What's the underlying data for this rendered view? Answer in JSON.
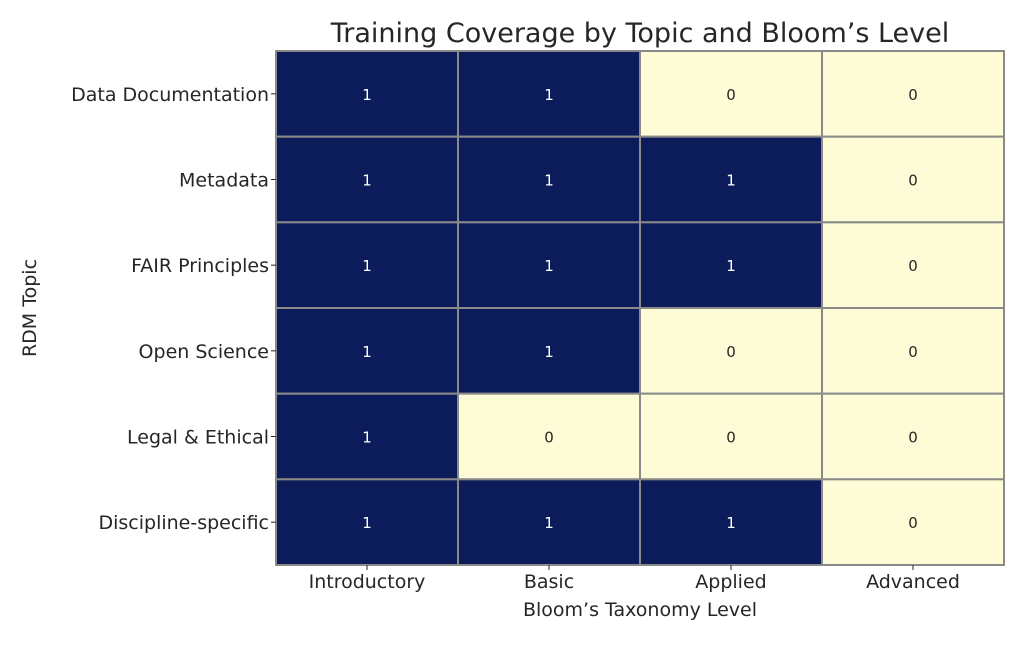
{
  "chart_data": {
    "type": "heatmap",
    "title": "Training Coverage by Topic and Bloom’s Level",
    "xlabel": "Bloom’s Taxonomy Level",
    "ylabel": "RDM Topic",
    "x_categories": [
      "Introductory",
      "Basic",
      "Applied",
      "Advanced"
    ],
    "y_categories": [
      "Data Documentation",
      "Metadata",
      "FAIR Principles",
      "Open Science",
      "Legal & Ethical",
      "Discipline-specific"
    ],
    "values": [
      [
        1,
        1,
        0,
        0
      ],
      [
        1,
        1,
        1,
        0
      ],
      [
        1,
        1,
        1,
        0
      ],
      [
        1,
        1,
        0,
        0
      ],
      [
        1,
        0,
        0,
        0
      ],
      [
        1,
        1,
        1,
        0
      ]
    ],
    "colors": {
      "high": "#0c1c5a",
      "low": "#fdfcd6",
      "high_text": "#ffffff",
      "low_text": "#262626",
      "grid": "#8a8a8a"
    },
    "grid": true,
    "annotations": true
  }
}
